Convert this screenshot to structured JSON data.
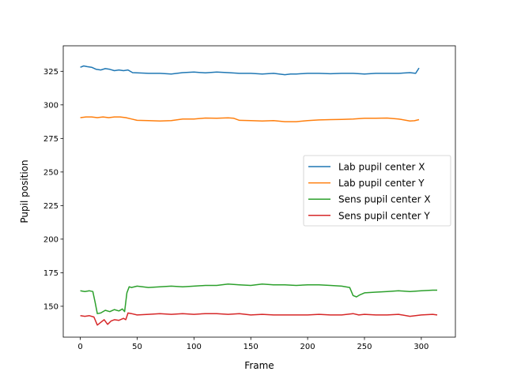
{
  "chart_data": {
    "type": "line",
    "title": "",
    "xlabel": "Frame",
    "ylabel": "Pupil position",
    "xlim": [
      -15,
      330
    ],
    "ylim": [
      127,
      344
    ],
    "xticks": [
      0,
      50,
      100,
      150,
      200,
      250,
      300
    ],
    "yticks": [
      150,
      175,
      200,
      225,
      250,
      275,
      300,
      325
    ],
    "grid": false,
    "legend_position": "center-right",
    "series": [
      {
        "name": "Lab pupil center X",
        "color": "#1f77b4",
        "x": [
          0,
          3,
          6,
          10,
          14,
          18,
          22,
          26,
          30,
          34,
          38,
          42,
          46,
          50,
          60,
          70,
          80,
          90,
          100,
          110,
          120,
          130,
          140,
          150,
          160,
          170,
          180,
          185,
          190,
          200,
          210,
          220,
          230,
          240,
          250,
          260,
          270,
          280,
          290,
          295,
          298
        ],
        "y": [
          328,
          329,
          328.5,
          328,
          326.5,
          326,
          327,
          326.5,
          325.5,
          326,
          325.5,
          326,
          324,
          323.8,
          323.5,
          323.5,
          323,
          324,
          324.5,
          323.8,
          324.5,
          324,
          323.5,
          323.5,
          323,
          323.5,
          322.5,
          323,
          323,
          323.5,
          323.5,
          323.2,
          323.5,
          323.5,
          323,
          323.5,
          323.5,
          323.5,
          324,
          323.5,
          327.5
        ]
      },
      {
        "name": "Lab pupil center Y",
        "color": "#ff7f0e",
        "x": [
          0,
          5,
          10,
          15,
          20,
          25,
          30,
          35,
          40,
          45,
          50,
          60,
          70,
          80,
          90,
          100,
          110,
          120,
          130,
          135,
          140,
          150,
          160,
          170,
          180,
          190,
          200,
          210,
          220,
          230,
          240,
          250,
          260,
          270,
          280,
          290,
          294,
          298
        ],
        "y": [
          290.5,
          291,
          291,
          290.5,
          291,
          290.5,
          291,
          291,
          290.5,
          289.5,
          288.5,
          288.3,
          288,
          288.3,
          289.5,
          289.5,
          290.2,
          290,
          290.3,
          290,
          288.5,
          288.3,
          288,
          288.3,
          287.5,
          287.5,
          288.3,
          288.8,
          289,
          289.2,
          289.5,
          290,
          290,
          290.2,
          289.5,
          288,
          288.2,
          289
        ]
      },
      {
        "name": "Sens pupil center X",
        "color": "#2ca02c",
        "x": [
          0,
          4,
          8,
          11,
          13,
          15,
          18,
          22,
          26,
          30,
          34,
          37,
          39,
          41,
          43,
          45,
          50,
          60,
          70,
          80,
          90,
          100,
          110,
          120,
          130,
          140,
          150,
          160,
          170,
          180,
          190,
          200,
          210,
          220,
          230,
          237,
          240,
          243,
          246,
          250,
          260,
          270,
          280,
          290,
          300,
          310,
          314
        ],
        "y": [
          161.5,
          161,
          161.5,
          161,
          153,
          144.5,
          145,
          147,
          146,
          147.5,
          146.5,
          148,
          146,
          160,
          164.5,
          164,
          165,
          164,
          164.5,
          165,
          164.5,
          165,
          165.5,
          165.5,
          166.5,
          166,
          165.5,
          166.5,
          166,
          166,
          165.5,
          166,
          166,
          165.5,
          165,
          164,
          158,
          157,
          158.5,
          160,
          160.5,
          161,
          161.5,
          161,
          161.5,
          162,
          162
        ]
      },
      {
        "name": "Sens pupil center Y",
        "color": "#d62728",
        "x": [
          0,
          4,
          8,
          12,
          15,
          18,
          21,
          24,
          27,
          30,
          34,
          38,
          40,
          42,
          45,
          50,
          60,
          70,
          80,
          90,
          100,
          110,
          120,
          130,
          140,
          150,
          160,
          170,
          180,
          190,
          200,
          210,
          220,
          230,
          240,
          245,
          250,
          260,
          270,
          280,
          290,
          300,
          310,
          314
        ],
        "y": [
          143,
          142.5,
          143,
          142,
          136,
          138,
          140,
          136.5,
          139,
          140,
          139.5,
          141,
          140,
          145,
          144.5,
          143.5,
          144,
          144.5,
          144,
          144.5,
          144,
          144.5,
          144.5,
          144,
          144.5,
          143.5,
          144,
          143.5,
          143.5,
          143.5,
          143.5,
          144,
          143.5,
          143.5,
          144.5,
          143.5,
          144,
          143.5,
          143.5,
          144,
          142.5,
          143.5,
          144,
          143.5
        ]
      }
    ]
  }
}
